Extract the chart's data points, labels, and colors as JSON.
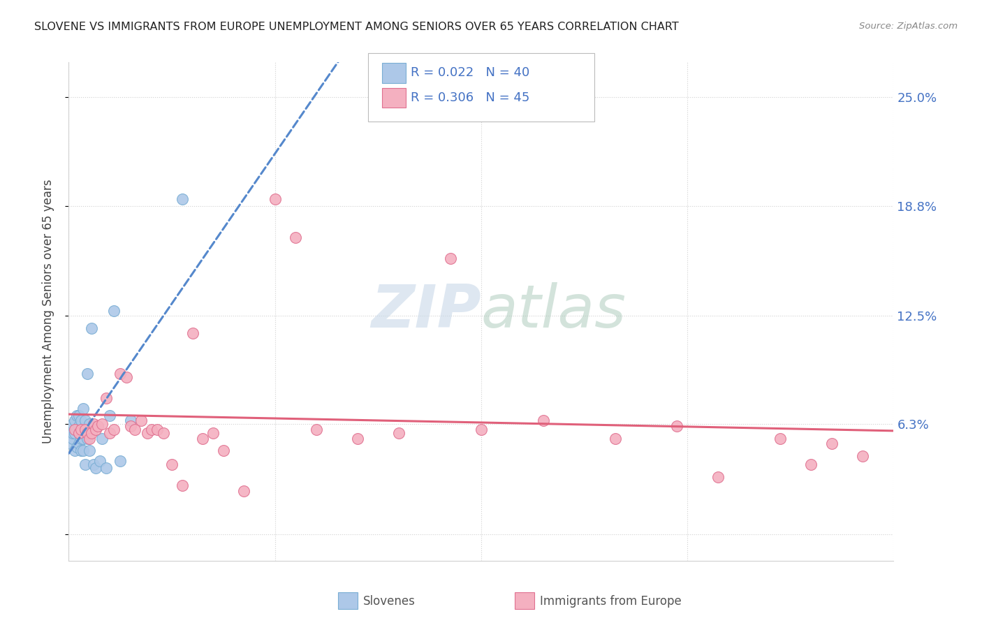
{
  "title": "SLOVENE VS IMMIGRANTS FROM EUROPE UNEMPLOYMENT AMONG SENIORS OVER 65 YEARS CORRELATION CHART",
  "source": "Source: ZipAtlas.com",
  "ylabel": "Unemployment Among Seniors over 65 years",
  "x_range": [
    0.0,
    0.4
  ],
  "y_range": [
    -0.015,
    0.27
  ],
  "y_tick_vals": [
    0.0,
    0.063,
    0.125,
    0.188,
    0.25
  ],
  "y_tick_labels_right": [
    "",
    "6.3%",
    "12.5%",
    "18.8%",
    "25.0%"
  ],
  "x_tick_vals": [
    0.0,
    0.1,
    0.2,
    0.3,
    0.4
  ],
  "color_slovene_fill": "#adc8e8",
  "color_slovene_edge": "#7aaed4",
  "color_immigrant_fill": "#f4b0c0",
  "color_immigrant_edge": "#e07090",
  "color_slovene_line": "#5588cc",
  "color_immigrant_line": "#e0607a",
  "color_grid": "#d0d0d0",
  "color_axis_labels": "#4472c4",
  "color_title": "#222222",
  "color_ylabel": "#444444",
  "color_source": "#888888",
  "color_bottom_legend": "#555555",
  "watermark_color": "#ccdde8",
  "legend_r1": "R = 0.022",
  "legend_n1": "N = 40",
  "legend_r2": "R = 0.306",
  "legend_n2": "N = 45",
  "slovene_x": [
    0.001,
    0.001,
    0.002,
    0.002,
    0.002,
    0.003,
    0.003,
    0.003,
    0.004,
    0.004,
    0.004,
    0.005,
    0.005,
    0.005,
    0.005,
    0.006,
    0.006,
    0.006,
    0.006,
    0.007,
    0.007,
    0.007,
    0.008,
    0.008,
    0.008,
    0.009,
    0.009,
    0.01,
    0.01,
    0.011,
    0.012,
    0.013,
    0.015,
    0.016,
    0.018,
    0.02,
    0.022,
    0.025,
    0.03,
    0.055
  ],
  "slovene_y": [
    0.052,
    0.06,
    0.055,
    0.058,
    0.063,
    0.048,
    0.058,
    0.065,
    0.05,
    0.06,
    0.068,
    0.052,
    0.058,
    0.062,
    0.068,
    0.048,
    0.055,
    0.06,
    0.065,
    0.048,
    0.055,
    0.072,
    0.04,
    0.058,
    0.065,
    0.055,
    0.092,
    0.048,
    0.063,
    0.118,
    0.04,
    0.038,
    0.042,
    0.055,
    0.038,
    0.068,
    0.128,
    0.042,
    0.065,
    0.192
  ],
  "immigrant_x": [
    0.003,
    0.005,
    0.006,
    0.008,
    0.009,
    0.01,
    0.011,
    0.012,
    0.013,
    0.014,
    0.016,
    0.018,
    0.02,
    0.022,
    0.025,
    0.028,
    0.03,
    0.032,
    0.035,
    0.038,
    0.04,
    0.043,
    0.046,
    0.05,
    0.055,
    0.06,
    0.065,
    0.07,
    0.075,
    0.085,
    0.1,
    0.11,
    0.12,
    0.14,
    0.16,
    0.185,
    0.2,
    0.23,
    0.265,
    0.295,
    0.315,
    0.345,
    0.36,
    0.37,
    0.385
  ],
  "immigrant_y": [
    0.06,
    0.058,
    0.06,
    0.06,
    0.058,
    0.055,
    0.058,
    0.063,
    0.06,
    0.062,
    0.063,
    0.078,
    0.058,
    0.06,
    0.092,
    0.09,
    0.062,
    0.06,
    0.065,
    0.058,
    0.06,
    0.06,
    0.058,
    0.04,
    0.028,
    0.115,
    0.055,
    0.058,
    0.048,
    0.025,
    0.192,
    0.17,
    0.06,
    0.055,
    0.058,
    0.158,
    0.06,
    0.065,
    0.055,
    0.062,
    0.033,
    0.055,
    0.04,
    0.052,
    0.045
  ]
}
